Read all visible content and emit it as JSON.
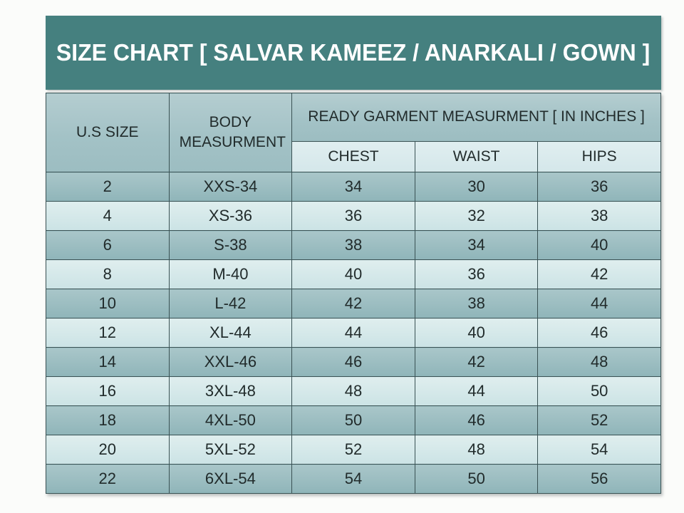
{
  "banner": {
    "title": "SIZE CHART [ SALVAR KAMEEZ / ANARKALI / GOWN ]"
  },
  "table": {
    "header": {
      "us_size": "U.S SIZE",
      "body_measurement": "BODY MEASURMENT",
      "ready_garment_group": "READY GARMENT MEASURMENT [ IN INCHES ]",
      "sub_columns": [
        "CHEST",
        "WAIST",
        "HIPS"
      ]
    }
  },
  "colors": {
    "banner_teal": "#45807f",
    "banner_text": "#ffffff",
    "header_fill": "#a9c6c9",
    "subheader_fill": "#d9e9ec",
    "row_dark": "#9abec1",
    "row_light": "#d5e9ea",
    "border": "#3a5254",
    "text": "#212b2b",
    "page_background": "#fbfcfa"
  },
  "chart_data": {
    "type": "table",
    "title": "SIZE CHART [ SALVAR KAMEEZ / ANARKALI / GOWN ]",
    "columns": [
      "U.S SIZE",
      "BODY MEASURMENT",
      "CHEST",
      "WAIST",
      "HIPS"
    ],
    "column_group": {
      "label": "READY GARMENT MEASURMENT [ IN INCHES ]",
      "spans": [
        "CHEST",
        "WAIST",
        "HIPS"
      ]
    },
    "rows": [
      [
        "2",
        "XXS-34",
        "34",
        "30",
        "36"
      ],
      [
        "4",
        "XS-36",
        "36",
        "32",
        "38"
      ],
      [
        "6",
        "S-38",
        "38",
        "34",
        "40"
      ],
      [
        "8",
        "M-40",
        "40",
        "36",
        "42"
      ],
      [
        "10",
        "L-42",
        "42",
        "38",
        "44"
      ],
      [
        "12",
        "XL-44",
        "44",
        "40",
        "46"
      ],
      [
        "14",
        "XXL-46",
        "46",
        "42",
        "48"
      ],
      [
        "16",
        "3XL-48",
        "48",
        "44",
        "50"
      ],
      [
        "18",
        "4XL-50",
        "50",
        "46",
        "52"
      ],
      [
        "20",
        "5XL-52",
        "52",
        "48",
        "54"
      ],
      [
        "22",
        "6XL-54",
        "54",
        "50",
        "56"
      ]
    ]
  }
}
